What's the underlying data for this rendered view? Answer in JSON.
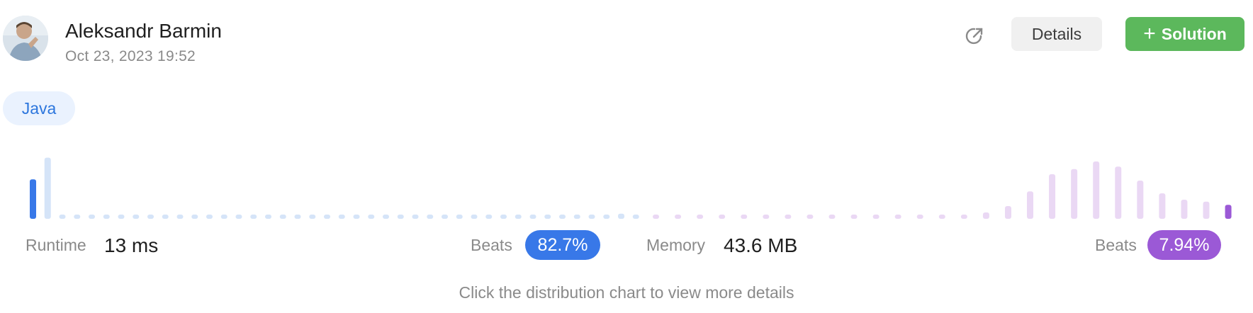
{
  "user": {
    "name": "Aleksandr Barmin",
    "date": "Oct 23, 2023 19:52"
  },
  "actions": {
    "share_icon": "share-icon",
    "details_label": "Details",
    "solution_label": "Solution",
    "solution_icon": "plus-icon"
  },
  "language": "Java",
  "runtime": {
    "label": "Runtime",
    "value": "13 ms",
    "beats_label": "Beats",
    "beats": "82.7%"
  },
  "memory": {
    "label": "Memory",
    "value": "43.6 MB",
    "beats_label": "Beats",
    "beats": "7.94%"
  },
  "hint": "Click the distribution chart to view more details",
  "colors": {
    "runtime_active": "#3878e8",
    "runtime_bar": "#d5e4f8",
    "memory_active": "#9b59d6",
    "memory_bar": "#ead8f4",
    "solution_button": "#5cb85c"
  },
  "chart_data": [
    {
      "type": "bar",
      "name": "runtime-distribution",
      "highlight_index": 0,
      "values": [
        0.62,
        0.96,
        0.05,
        0.05,
        0.05,
        0.05,
        0.05,
        0.05,
        0.05,
        0.05,
        0.05,
        0.05,
        0.05,
        0.05,
        0.05,
        0.05,
        0.05,
        0.05,
        0.05,
        0.05,
        0.05,
        0.05,
        0.05,
        0.05,
        0.05,
        0.05,
        0.05,
        0.05,
        0.05,
        0.05,
        0.05,
        0.05,
        0.05,
        0.05,
        0.05,
        0.05,
        0.05,
        0.05,
        0.05,
        0.05,
        0.08,
        0.05
      ]
    },
    {
      "type": "bar",
      "name": "memory-distribution",
      "highlight_index": 26,
      "values": [
        0.05,
        0.05,
        0.05,
        0.05,
        0.05,
        0.05,
        0.05,
        0.05,
        0.05,
        0.05,
        0.05,
        0.05,
        0.05,
        0.05,
        0.05,
        0.1,
        0.2,
        0.43,
        0.7,
        0.78,
        0.9,
        0.82,
        0.6,
        0.4,
        0.3,
        0.27,
        0.22
      ]
    }
  ]
}
